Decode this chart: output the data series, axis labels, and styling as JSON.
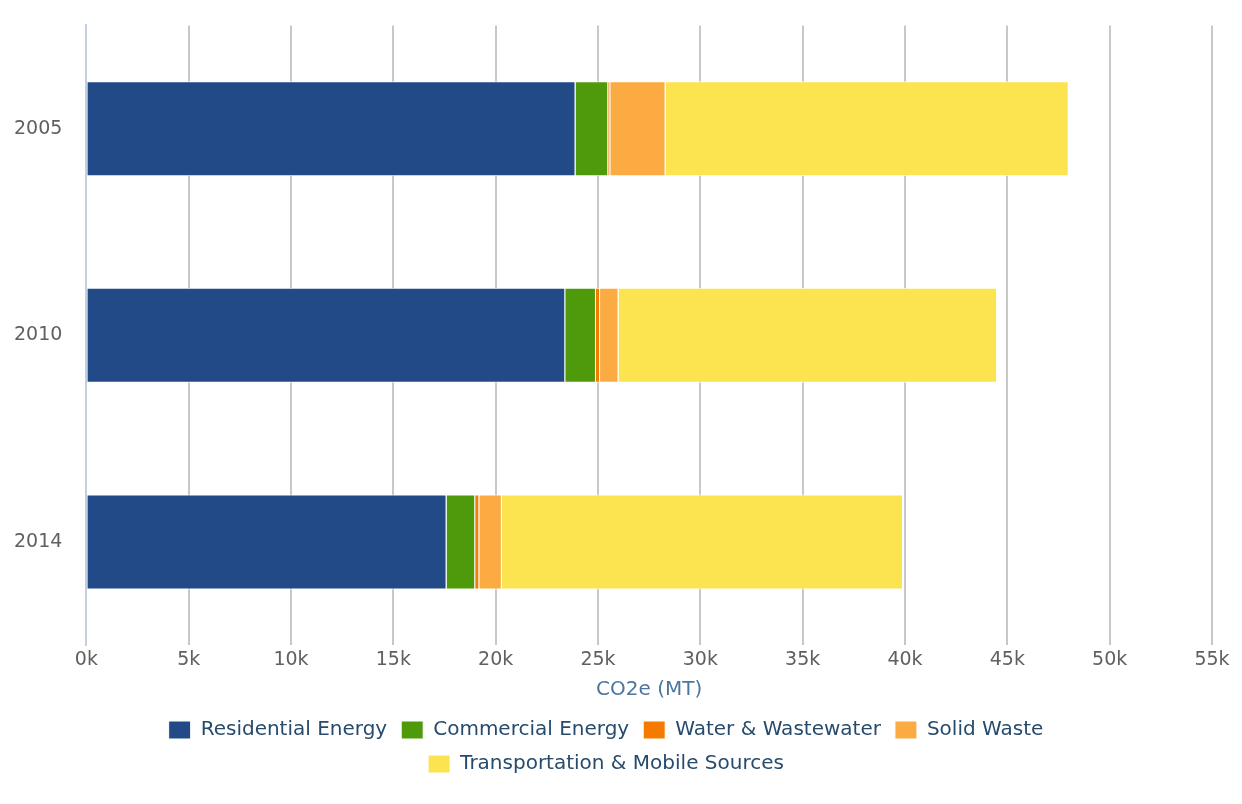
{
  "chart_data": {
    "type": "bar",
    "orientation": "horizontal",
    "stacked": true,
    "xlabel": "CO2e (MT)",
    "categories": [
      "2005",
      "2010",
      "2014"
    ],
    "series": [
      {
        "name": "Residential Energy",
        "color": "#214a87",
        "values": [
          23.9,
          23.4,
          17.6
        ]
      },
      {
        "name": "Commercial Energy",
        "color": "#4f9a0b",
        "values": [
          1.6,
          1.5,
          1.4
        ]
      },
      {
        "name": "Water & Wastewater",
        "color": "#f47b00",
        "values": [
          0.1,
          0.2,
          0.2
        ]
      },
      {
        "name": "Solid Waste",
        "color": "#fbab41",
        "values": [
          2.7,
          0.9,
          1.1
        ]
      },
      {
        "name": "Transportation & Mobile Sources",
        "color": "#fbe44f",
        "values": [
          19.7,
          18.5,
          19.6
        ]
      }
    ],
    "xlim": [
      0,
      55
    ],
    "xticks": [
      {
        "value": 0,
        "label": "0k"
      },
      {
        "value": 5,
        "label": "5k"
      },
      {
        "value": 10,
        "label": "10k"
      },
      {
        "value": 15,
        "label": "15k"
      },
      {
        "value": 20,
        "label": "20k"
      },
      {
        "value": 25,
        "label": "25k"
      },
      {
        "value": 30,
        "label": "30k"
      },
      {
        "value": 35,
        "label": "35k"
      },
      {
        "value": 40,
        "label": "40k"
      },
      {
        "value": 45,
        "label": "45k"
      },
      {
        "value": 50,
        "label": "50k"
      },
      {
        "value": 55,
        "label": "55k"
      }
    ],
    "grid": "x",
    "legend": "bottom"
  }
}
